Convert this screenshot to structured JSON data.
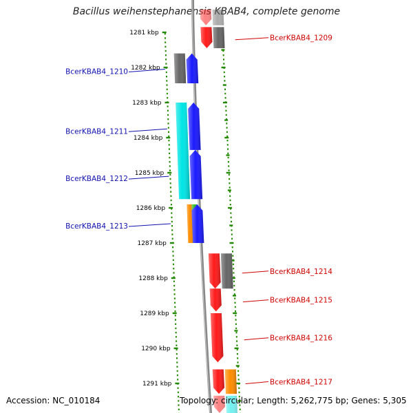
{
  "title": "Bacillus weihenstephanensis KBAB4, complete genome",
  "footer": {
    "accession": "Accession: NC_010184",
    "summary": "Topology: circular; Length: 5,262,775 bp; Genes: 5,305"
  },
  "colors": {
    "forward_cds": "#1a1aff",
    "reverse_cds": "#ff1a1a",
    "rna_gray": "#666666",
    "cyan": "#00e5e5",
    "orange": "#ff8c00",
    "green": "#33bb22",
    "tick": "#228800",
    "backbone": "#888888"
  },
  "scale": {
    "unit": "kbp",
    "start": 1280.55,
    "end": 1292.3
  },
  "kbp_ticks": [
    {
      "pos": 1281,
      "label": "1281 kbp"
    },
    {
      "pos": 1282,
      "label": "1282 kbp"
    },
    {
      "pos": 1283,
      "label": "1283 kbp"
    },
    {
      "pos": 1284,
      "label": "1284 kbp"
    },
    {
      "pos": 1285,
      "label": "1285 kbp"
    },
    {
      "pos": 1286,
      "label": "1286 kbp"
    },
    {
      "pos": 1287,
      "label": "1287 kbp"
    },
    {
      "pos": 1288,
      "label": "1288 kbp"
    },
    {
      "pos": 1289,
      "label": "1289 kbp"
    },
    {
      "pos": 1290,
      "label": "1290 kbp"
    },
    {
      "pos": 1291,
      "label": "1291 kbp"
    }
  ],
  "features": [
    {
      "track": "outer-rev",
      "color": "reverse_cds",
      "start": 1280.35,
      "end": 1280.8,
      "dir": "down",
      "light": true
    },
    {
      "track": "outer-rev2",
      "color": "rna_gray",
      "start": 1280.35,
      "end": 1280.8,
      "dir": "none",
      "light": true
    },
    {
      "track": "outer-rev",
      "color": "reverse_cds",
      "start": 1280.85,
      "end": 1281.45,
      "dir": "down"
    },
    {
      "track": "outer-rev2",
      "color": "rna_gray",
      "start": 1280.85,
      "end": 1281.45,
      "dir": "none"
    },
    {
      "track": "fwd2",
      "color": "rna_gray",
      "start": 1281.6,
      "end": 1282.45,
      "dir": "none"
    },
    {
      "track": "fwd",
      "color": "forward_cds",
      "start": 1281.6,
      "end": 1282.45,
      "dir": "up"
    },
    {
      "track": "fwd2",
      "color": "cyan",
      "start": 1283.0,
      "end": 1285.75,
      "dir": "none"
    },
    {
      "track": "fwd",
      "color": "forward_cds",
      "start": 1283.0,
      "end": 1284.35,
      "dir": "up"
    },
    {
      "track": "fwd",
      "color": "forward_cds",
      "start": 1284.35,
      "end": 1285.75,
      "dir": "up"
    },
    {
      "track": "fwd2a",
      "color": "orange",
      "start": 1285.9,
      "end": 1287.0,
      "dir": "none"
    },
    {
      "track": "fwd2b",
      "color": "green",
      "start": 1285.9,
      "end": 1287.0,
      "dir": "none"
    },
    {
      "track": "fwd",
      "color": "forward_cds",
      "start": 1285.9,
      "end": 1287.0,
      "dir": "up"
    },
    {
      "track": "outer-rev",
      "color": "reverse_cds",
      "start": 1287.3,
      "end": 1288.3,
      "dir": "down"
    },
    {
      "track": "outer-rev2",
      "color": "rna_gray",
      "start": 1287.3,
      "end": 1288.3,
      "dir": "none"
    },
    {
      "track": "outer-rev",
      "color": "reverse_cds",
      "start": 1288.3,
      "end": 1288.95,
      "dir": "down"
    },
    {
      "track": "outer-rev",
      "color": "reverse_cds",
      "start": 1289.0,
      "end": 1290.4,
      "dir": "down"
    },
    {
      "track": "outer-rev",
      "color": "reverse_cds",
      "start": 1290.6,
      "end": 1291.3,
      "dir": "down"
    },
    {
      "track": "outer-rev2",
      "color": "orange",
      "start": 1290.6,
      "end": 1291.3,
      "dir": "none"
    },
    {
      "track": "outer-rev",
      "color": "reverse_cds",
      "start": 1291.35,
      "end": 1292.4,
      "dir": "down",
      "light": true
    },
    {
      "track": "outer-rev2",
      "color": "cyan",
      "start": 1291.35,
      "end": 1292.4,
      "dir": "none",
      "light": true
    }
  ],
  "gene_labels": [
    {
      "side": "left",
      "text": "BcerKBAB4_1210",
      "anchor": 1282.05
    },
    {
      "side": "left",
      "text": "BcerKBAB4_1211",
      "anchor": 1283.75
    },
    {
      "side": "left",
      "text": "BcerKBAB4_1212",
      "anchor": 1285.1
    },
    {
      "side": "left",
      "text": "BcerKBAB4_1213",
      "anchor": 1286.45
    },
    {
      "side": "right",
      "text": "BcerKBAB4_1209",
      "anchor": 1281.15
    },
    {
      "side": "right",
      "text": "BcerKBAB4_1214",
      "anchor": 1287.8
    },
    {
      "side": "right",
      "text": "BcerKBAB4_1215",
      "anchor": 1288.62
    },
    {
      "side": "right",
      "text": "BcerKBAB4_1216",
      "anchor": 1289.7
    },
    {
      "side": "right",
      "text": "BcerKBAB4_1217",
      "anchor": 1290.95
    }
  ]
}
